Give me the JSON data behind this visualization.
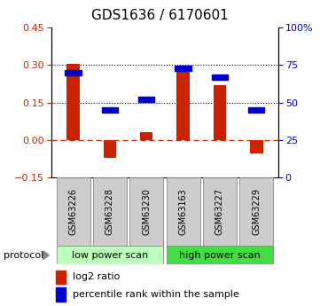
{
  "title": "GDS1636 / 6170601",
  "samples": [
    "GSM63226",
    "GSM63228",
    "GSM63230",
    "GSM63163",
    "GSM63227",
    "GSM63229"
  ],
  "log2_ratio": [
    0.305,
    -0.07,
    0.03,
    0.285,
    0.22,
    -0.055
  ],
  "pct_rank_pct": [
    70,
    45,
    52,
    73,
    67,
    45
  ],
  "ylim_left": [
    -0.15,
    0.45
  ],
  "ylim_right": [
    0,
    100
  ],
  "yticks_left": [
    -0.15,
    0.0,
    0.15,
    0.3,
    0.45
  ],
  "yticks_right": [
    0,
    25,
    50,
    75,
    100
  ],
  "ytick_right_labels": [
    "0",
    "25",
    "50",
    "75",
    "100%"
  ],
  "hlines": [
    0.15,
    0.3
  ],
  "zero_line": 0.0,
  "bar_color": "#cc2200",
  "point_color": "#0000cc",
  "groups": [
    {
      "label": "low power scan",
      "indices": [
        0,
        1,
        2
      ],
      "color": "#bbffbb"
    },
    {
      "label": "high power scan",
      "indices": [
        3,
        4,
        5
      ],
      "color": "#44dd44"
    }
  ],
  "protocol_label": "protocol",
  "legend_bar_label": "log2 ratio",
  "legend_point_label": "percentile rank within the sample",
  "title_fontsize": 11,
  "tick_fontsize": 8,
  "label_fontsize": 8,
  "sample_fontsize": 7,
  "group_fontsize": 8
}
